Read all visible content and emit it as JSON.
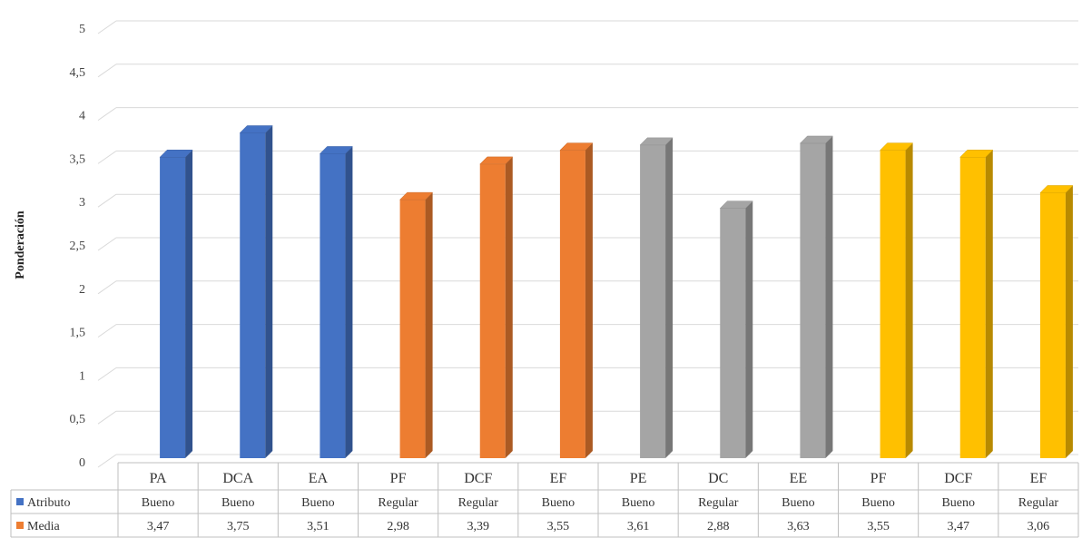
{
  "chart_data": {
    "type": "bar",
    "ylabel": "Ponderación",
    "ylim": [
      0,
      5
    ],
    "yticks": [
      "0",
      "0,5",
      "1",
      "1,5",
      "2",
      "2,5",
      "3",
      "3,5",
      "4",
      "4,5",
      "5"
    ],
    "grid": true,
    "categories": [
      "PA",
      "DCA",
      "EA",
      "PF",
      "DCF",
      "EF",
      "PE",
      "DC",
      "EE",
      "PF",
      "DCF",
      "EF"
    ],
    "values": [
      3.47,
      3.75,
      3.51,
      2.98,
      3.39,
      3.55,
      3.61,
      2.88,
      3.63,
      3.55,
      3.47,
      3.06
    ],
    "bar_colors": [
      "#4472C4",
      "#4472C4",
      "#4472C4",
      "#ED7D31",
      "#ED7D31",
      "#ED7D31",
      "#A5A5A5",
      "#A5A5A5",
      "#A5A5A5",
      "#FFC000",
      "#FFC000",
      "#FFC000"
    ],
    "data_table": {
      "rows": [
        {
          "legend": "Atributo",
          "color": "#4472C4",
          "cells": [
            "Bueno",
            "Bueno",
            "Bueno",
            "Regular",
            "Regular",
            "Bueno",
            "Bueno",
            "Regular",
            "Bueno",
            "Bueno",
            "Bueno",
            "Regular"
          ]
        },
        {
          "legend": "Media",
          "color": "#ED7D31",
          "cells": [
            "3,47",
            "3,75",
            "3,51",
            "2,98",
            "3,39",
            "3,55",
            "3,61",
            "2,88",
            "3,63",
            "3,55",
            "3,47",
            "3,06"
          ]
        }
      ]
    }
  }
}
